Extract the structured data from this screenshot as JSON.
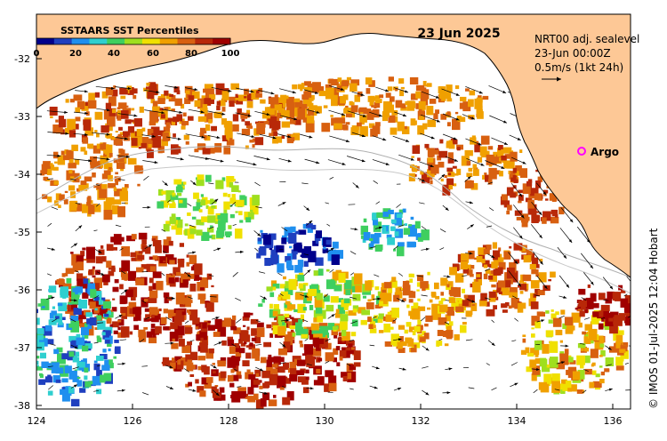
{
  "map": {
    "date_title": "23 Jun 2025",
    "legend": {
      "title": "SSTAARS SST Percentiles",
      "ticks": [
        "0",
        "20",
        "40",
        "60",
        "80",
        "100"
      ],
      "colors": [
        "#00008b",
        "#1f3fbf",
        "#1f8fef",
        "#2fcfcf",
        "#3fcf5f",
        "#9fdf1f",
        "#f0e000",
        "#f0a000",
        "#d86010",
        "#b82808",
        "#a00000"
      ]
    },
    "info": {
      "line1": "NRT00 adj. sealevel",
      "line2": "23-Jun 00:00Z",
      "line3": "0.5m/s (1kt 24h)"
    },
    "argo_label": "Argo",
    "credit": "© IMOS 01-Jul-2025 12:04 Hobart",
    "x_ticks": [
      "124",
      "126",
      "128",
      "130",
      "132",
      "134",
      "136"
    ],
    "y_ticks": [
      "-32",
      "-33",
      "-34",
      "-35",
      "-36",
      "-37",
      "-38"
    ],
    "colors": {
      "land": "#fdc896",
      "ocean": "#ffffff",
      "coastline": "#000000",
      "argo_marker": "#ff00ff"
    }
  }
}
